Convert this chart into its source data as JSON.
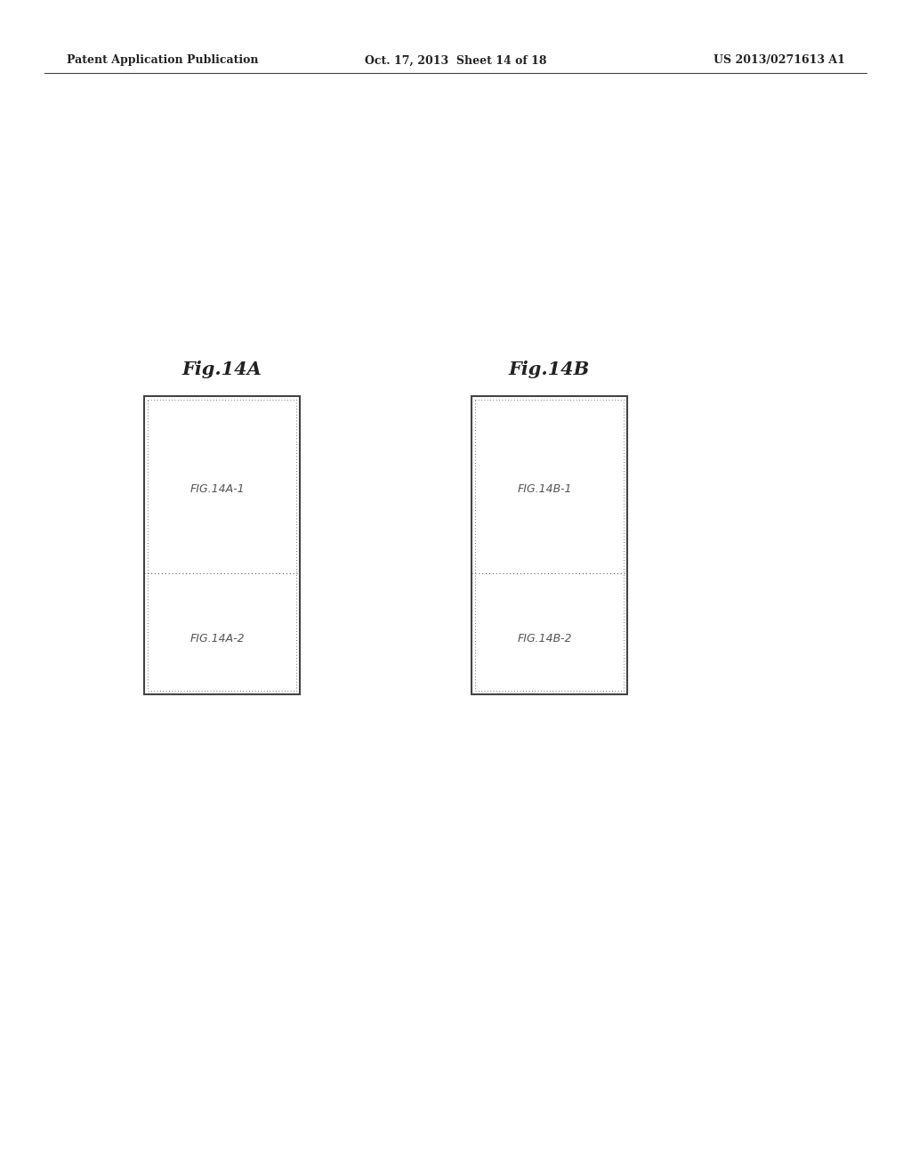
{
  "background_color": "#ffffff",
  "header_text_left": "Patent Application Publication",
  "header_text_mid": "Oct. 17, 2013  Sheet 14 of 18",
  "header_text_right": "US 2013/0271613 A1",
  "fig14A_title": "Fig.14A",
  "fig14B_title": "Fig.14B",
  "label_A1": "FIG.14A-1",
  "label_A2": "FIG.14A-2",
  "label_B1": "FIG.14B-1",
  "label_B2": "FIG.14B-2",
  "text_color": "#222222",
  "border_color": "#444444",
  "label_color": "#555555",
  "header_fontsize": 9,
  "title_fontsize": 15,
  "label_fontsize": 9
}
